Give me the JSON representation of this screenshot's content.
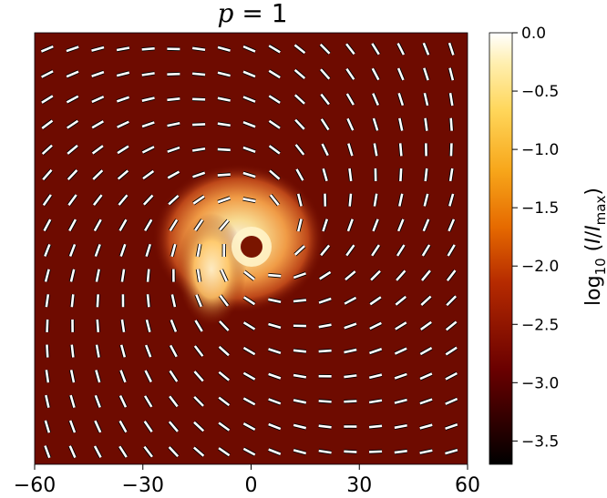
{
  "chart_data": {
    "type": "heatmap",
    "title": "p = 1",
    "title_parts": {
      "variable": "p",
      "equals": " = ",
      "value": "1"
    },
    "x_ticks": [
      -60,
      -30,
      0,
      30,
      60
    ],
    "x_tick_labels": [
      "−60",
      "−30",
      "0",
      "30",
      "60"
    ],
    "xlim": [
      -60,
      60
    ],
    "ylim": [
      -60,
      60
    ],
    "xlabel": "",
    "ylabel": "",
    "colorbar": {
      "label": "log10 (I/I_max)",
      "label_parts": {
        "log": "log",
        "sub10": "10",
        "open": " (",
        "I": "I",
        "slash": "/",
        "I2": "I",
        "max": "max",
        "close": ")"
      },
      "ticks": [
        0.0,
        -0.5,
        -1.0,
        -1.5,
        -2.0,
        -2.5,
        -3.0,
        -3.5
      ],
      "tick_labels": [
        "0.0",
        "−0.5",
        "−1.0",
        "−1.5",
        "−2.0",
        "−2.5",
        "−3.0",
        "−3.5"
      ],
      "range": [
        -3.7,
        0.0
      ],
      "colormap": "afmhot"
    },
    "image": {
      "description_source": "intensity map",
      "ring_center": [
        2,
        4
      ],
      "ring_radius": 6,
      "bright_arm_from": [
        -12,
        8
      ],
      "shadow_color": "#7a1500",
      "background_color": "#6e0b00"
    },
    "polarization_ticks": {
      "grid_step": 7,
      "pattern": "clockwise spiral about the center",
      "tick_color": "#ffffff",
      "edge_color": "#000000"
    }
  }
}
